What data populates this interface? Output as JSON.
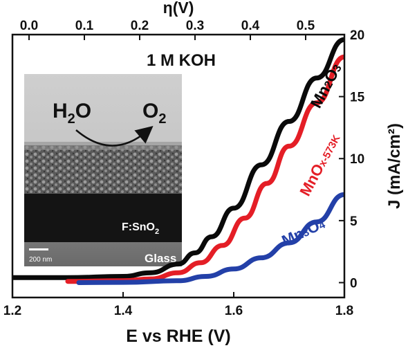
{
  "chart_data": {
    "type": "line",
    "title": "",
    "annotation": "1 M KOH",
    "xlabel": "E vs RHE (V)",
    "x2label": "η(V)",
    "ylabel": "J (mA/cm²)",
    "xlim": [
      1.2,
      1.8
    ],
    "ylim": [
      -1.2,
      20
    ],
    "xticks": [
      "1.2",
      "1.4",
      "1.6",
      "1.8"
    ],
    "xtick_values": [
      1.2,
      1.4,
      1.6,
      1.8
    ],
    "x2ticks": [
      "0.0",
      "0.1",
      "0.2",
      "0.3",
      "0.4",
      "0.5"
    ],
    "x2tick_values": [
      1.23,
      1.33,
      1.43,
      1.53,
      1.63,
      1.73
    ],
    "yticks": [
      "0",
      "5",
      "10",
      "15",
      "20"
    ],
    "ytick_values": [
      0,
      5,
      10,
      15,
      20
    ],
    "grid": false,
    "series": [
      {
        "name": "Mn2O3",
        "color": "#0a0a0a",
        "x": [
          1.2,
          1.3,
          1.4,
          1.45,
          1.5,
          1.53,
          1.56,
          1.6,
          1.65,
          1.7,
          1.75,
          1.8
        ],
        "y": [
          0.4,
          0.4,
          0.5,
          0.8,
          1.5,
          2.4,
          3.7,
          6.0,
          9.5,
          13.0,
          16.5,
          19.6
        ]
      },
      {
        "name": "MnOx-573K",
        "color": "#e41e26",
        "x": [
          1.3,
          1.4,
          1.45,
          1.5,
          1.54,
          1.58,
          1.62,
          1.66,
          1.7,
          1.75,
          1.8
        ],
        "y": [
          0.1,
          0.15,
          0.3,
          0.8,
          1.6,
          3.0,
          5.2,
          8.0,
          11.0,
          14.5,
          18.2
        ]
      },
      {
        "name": "Mn3O4",
        "color": "#2340a8",
        "x": [
          1.32,
          1.4,
          1.5,
          1.55,
          1.6,
          1.65,
          1.7,
          1.75,
          1.8
        ],
        "y": [
          0.0,
          0.02,
          0.15,
          0.5,
          1.1,
          2.0,
          3.2,
          4.9,
          7.1
        ]
      }
    ],
    "inset": {
      "labels": {
        "reactant": "H",
        "reactant_sub": "2",
        "reactant_tail": "O",
        "product": "O",
        "product_sub": "2",
        "substrate": "F:SnO",
        "substrate_sub": "2",
        "base": "Glass",
        "scale": "200 nm"
      }
    },
    "series_labels": [
      {
        "main": "Mn",
        "sub1": "2",
        "mid": "O",
        "sub2": "3",
        "color": "#0a0a0a"
      },
      {
        "main": "MnO",
        "sub1": "x-573K",
        "color": "#e41e26"
      },
      {
        "main": "Mn",
        "sub1": "3",
        "mid": "O",
        "sub2": "4",
        "color": "#2340a8"
      }
    ]
  }
}
